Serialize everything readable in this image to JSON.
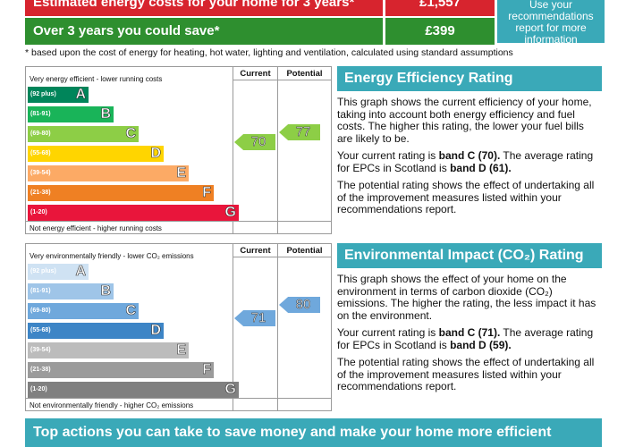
{
  "costs": {
    "row1_label": "Estimated energy costs for your home for 3 years*",
    "row1_value": "£1,557",
    "row2_label": "Over 3 years you could save*",
    "row2_value": "£399",
    "side_box": "Use your recommendations report for more information",
    "footnote": "* based upon the cost of energy for heating, hot water, lighting and ventilation, calculated using standard assumptions"
  },
  "colors": {
    "red": "#d7242e",
    "green": "#2e8f2f",
    "teal": "#3aa9b8"
  },
  "energy_chart": {
    "top_caption": "Very energy efficient - lower running costs",
    "bottom_caption": "Not energy efficient - higher running costs",
    "current_label": "Current",
    "potential_label": "Potential",
    "current_value": "70",
    "potential_value": "77",
    "bands": [
      {
        "range": "(92 plus)",
        "letter": "A",
        "color": "#00855a"
      },
      {
        "range": "(81-91)",
        "letter": "B",
        "color": "#19b459"
      },
      {
        "range": "(69-80)",
        "letter": "C",
        "color": "#8dce46"
      },
      {
        "range": "(55-68)",
        "letter": "D",
        "color": "#ffd500"
      },
      {
        "range": "(39-54)",
        "letter": "E",
        "color": "#fcaa65"
      },
      {
        "range": "(21-38)",
        "letter": "F",
        "color": "#ef8023"
      },
      {
        "range": "(1-20)",
        "letter": "G",
        "color": "#e9153b"
      }
    ]
  },
  "env_chart": {
    "top_caption": "Very environmentally friendly - lower CO₂ emissions",
    "bottom_caption": "Not environmentally friendly - higher CO₂ emissions",
    "current_label": "Current",
    "potential_label": "Potential",
    "current_value": "71",
    "potential_value": "80",
    "bands": [
      {
        "range": "(92 plus)",
        "letter": "A",
        "color": "#cfe2f3"
      },
      {
        "range": "(81-91)",
        "letter": "B",
        "color": "#9fc5e8"
      },
      {
        "range": "(69-80)",
        "letter": "C",
        "color": "#6fa8dc"
      },
      {
        "range": "(55-68)",
        "letter": "D",
        "color": "#3d85c6"
      },
      {
        "range": "(39-54)",
        "letter": "E",
        "color": "#bcbcbc"
      },
      {
        "range": "(21-38)",
        "letter": "F",
        "color": "#9b9b9b"
      },
      {
        "range": "(1-20)",
        "letter": "G",
        "color": "#808080"
      }
    ]
  },
  "energy_text": {
    "heading": "Energy Efficiency Rating",
    "p1": "This graph shows the current efficiency of your home, taking into account both energy efficiency and fuel costs. The higher this rating, the lower your fuel bills are likely to be.",
    "p2_pre": "Your current rating is ",
    "p2_bold1": "band C (70).",
    "p2_mid": " The average rating for EPCs in Scotland is ",
    "p2_bold2": "band D (61).",
    "p3": "The potential rating shows the effect of undertaking all of the improvement measures listed within your recommendations report."
  },
  "env_text": {
    "heading": "Environmental Impact (CO₂) Rating",
    "p1": "This graph shows the effect of your home on the environment in terms of carbon dioxide (CO₂) emissions. The higher the rating, the less impact it has on the environment.",
    "p2_pre": "Your current rating is ",
    "p2_bold1": "band C (71).",
    "p2_mid": " The average rating for EPCs in Scotland is ",
    "p2_bold2": "band D (59).",
    "p3": "The potential rating shows the effect of undertaking all of the improvement measures listed within your recommendations report."
  },
  "bottom_bar": "Top actions you can take to save money and make your home more efficient"
}
